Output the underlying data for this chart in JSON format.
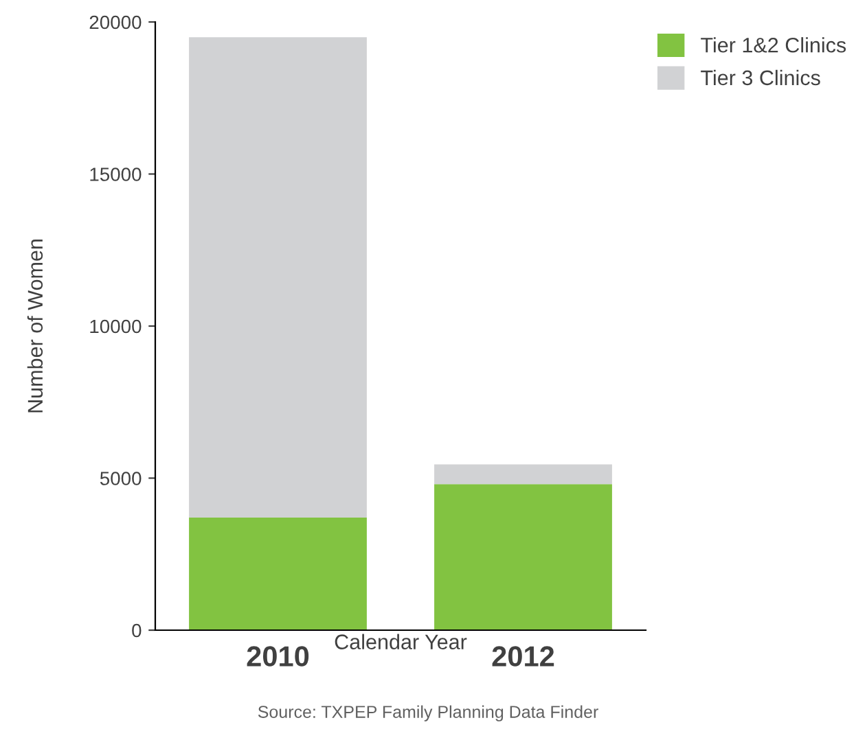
{
  "chart_data": {
    "type": "bar",
    "stacked": true,
    "categories": [
      "2010",
      "2012"
    ],
    "series": [
      {
        "name": "Tier 1&2 Clinics",
        "color": "#82c341",
        "values": [
          3700,
          4800
        ]
      },
      {
        "name": "Tier 3 Clinics",
        "color": "#d1d2d4",
        "values": [
          15800,
          650
        ]
      }
    ],
    "xlabel": "Calendar Year",
    "ylabel": "Number of Women",
    "ylim": [
      0,
      20000
    ],
    "yticks": [
      0,
      5000,
      10000,
      15000,
      20000
    ],
    "grid": false,
    "legend": "top right",
    "annotations": [
      "Source: TXPEP Family Planning Data Finder"
    ]
  }
}
